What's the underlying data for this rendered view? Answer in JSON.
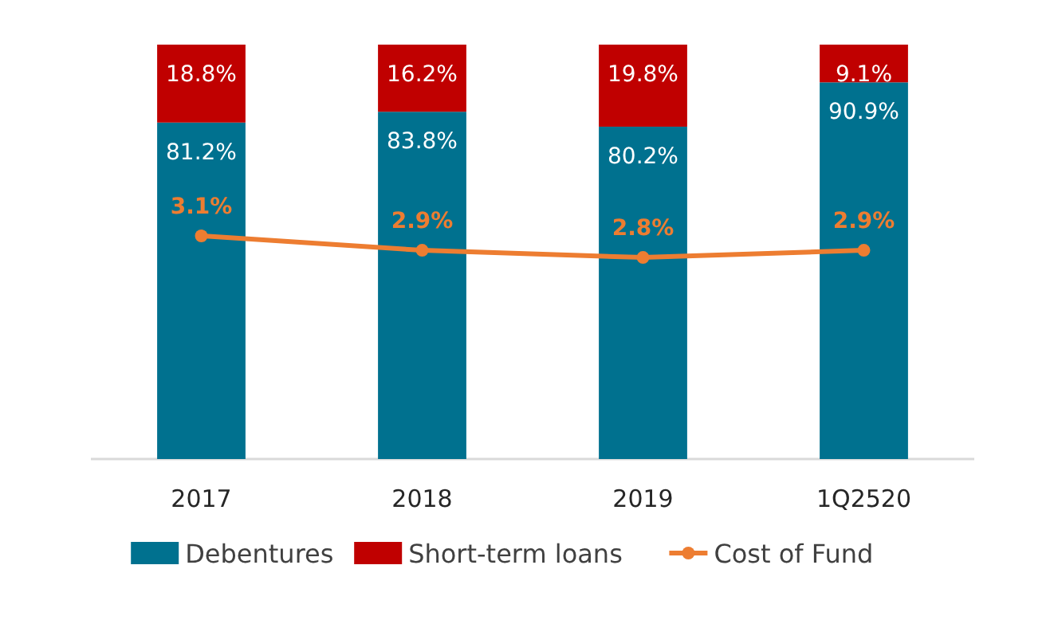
{
  "chart_data": {
    "type": "bar",
    "stacked": true,
    "categories": [
      "2017",
      "2018",
      "2019",
      "1Q2520"
    ],
    "series": [
      {
        "name": "Debentures",
        "color": "#00718f",
        "values": [
          81.2,
          83.8,
          80.2,
          90.9
        ],
        "value_labels": [
          "81.2%",
          "83.8%",
          "80.2%",
          "90.9%"
        ]
      },
      {
        "name": "Short-term loans",
        "color": "#c00000",
        "values": [
          18.8,
          16.2,
          19.8,
          9.1
        ],
        "value_labels": [
          "18.8%",
          "16.2%",
          "19.8%",
          "9.1%"
        ]
      },
      {
        "name": "Cost of Fund",
        "type": "line",
        "axis": "y2",
        "color": "#ed7d31",
        "marker": "circle",
        "values": [
          3.1,
          2.9,
          2.8,
          2.9
        ],
        "value_labels": [
          "3.1%",
          "2.9%",
          "2.8%",
          "2.9%"
        ]
      }
    ],
    "legend": "bottom"
  }
}
